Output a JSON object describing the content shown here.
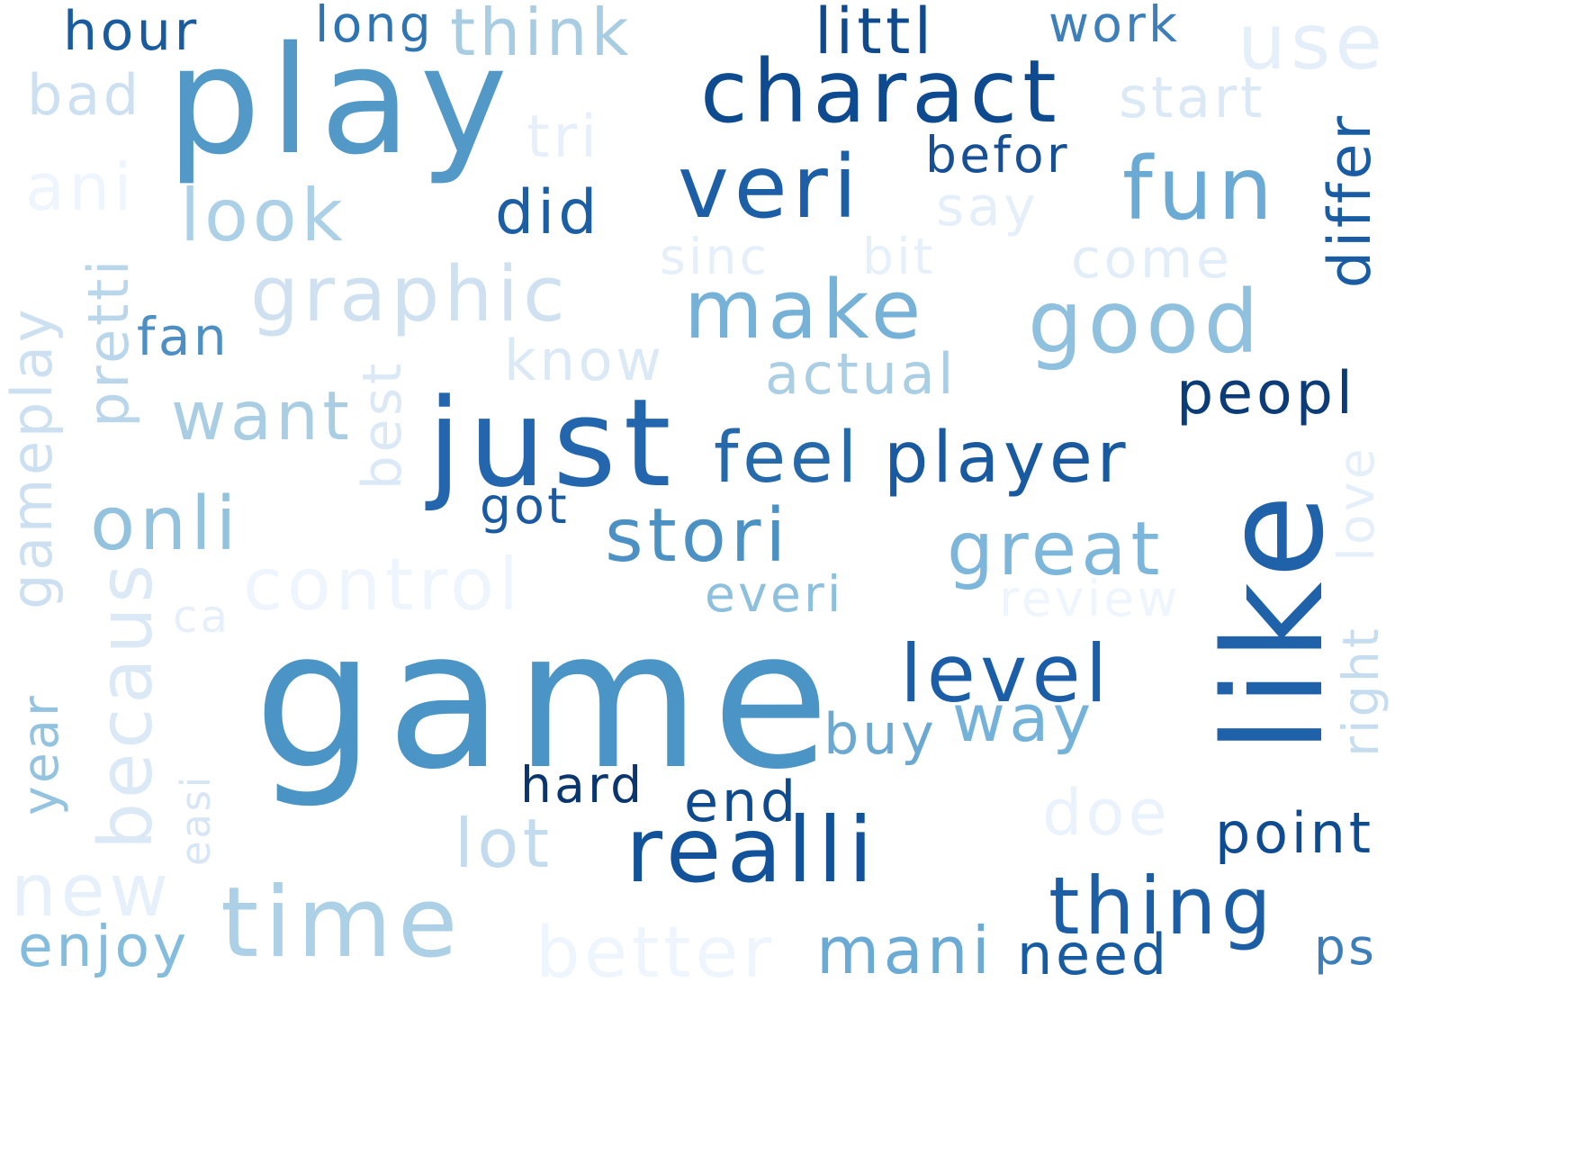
{
  "words": [
    {
      "text": "game",
      "color": "#4b94c6"
    },
    {
      "text": "play",
      "color": "#5299c8"
    },
    {
      "text": "like",
      "color": "#2062aa"
    },
    {
      "text": "just",
      "color": "#2466ad"
    },
    {
      "text": "time",
      "color": "#acd0e5"
    },
    {
      "text": "realli",
      "color": "#11529b"
    },
    {
      "text": "charact",
      "color": "#0d4a90"
    },
    {
      "text": "veri",
      "color": "#1d5fa6"
    },
    {
      "text": "fun",
      "color": "#6aaad5"
    },
    {
      "text": "good",
      "color": "#8fc1de"
    },
    {
      "text": "make",
      "color": "#76b1d8"
    },
    {
      "text": "graphic",
      "color": "#cfe1f1"
    },
    {
      "text": "stori",
      "color": "#4c91c3"
    },
    {
      "text": "great",
      "color": "#7cb7db"
    },
    {
      "text": "level",
      "color": "#1b5ea7"
    },
    {
      "text": "thing",
      "color": "#1c5ea6"
    },
    {
      "text": "player",
      "color": "#19599f"
    },
    {
      "text": "feel",
      "color": "#2669ab"
    },
    {
      "text": "look",
      "color": "#acd0e5"
    },
    {
      "text": "onli",
      "color": "#92c2de"
    },
    {
      "text": "want",
      "color": "#a9cde3"
    },
    {
      "text": "littl",
      "color": "#0f4a8f"
    },
    {
      "text": "differ",
      "color": "#1a5ca3"
    },
    {
      "text": "peopl",
      "color": "#0c3c78"
    },
    {
      "text": "way",
      "color": "#74b2da"
    },
    {
      "text": "mani",
      "color": "#6aaad4"
    },
    {
      "text": "point",
      "color": "#0e4b90"
    },
    {
      "text": "becaus",
      "color": "#dbe9f6"
    },
    {
      "text": "control",
      "color": "#eff5fc"
    },
    {
      "text": "gameplay",
      "color": "#cde0f1"
    },
    {
      "text": "pretti",
      "color": "#bad6ea"
    },
    {
      "text": "lot",
      "color": "#c3dbee"
    },
    {
      "text": "new",
      "color": "#e6f0fa"
    },
    {
      "text": "enjoy",
      "color": "#83bcdc"
    },
    {
      "text": "better",
      "color": "#eef5fc"
    },
    {
      "text": "need",
      "color": "#175ba2"
    },
    {
      "text": "end",
      "color": "#0f4a8f"
    },
    {
      "text": "hard",
      "color": "#0a3670"
    },
    {
      "text": "buy",
      "color": "#6ba9d3"
    },
    {
      "text": "everi",
      "color": "#8ec0dd"
    },
    {
      "text": "review",
      "color": "#eef5fc"
    },
    {
      "text": "doe",
      "color": "#eaf2fb"
    },
    {
      "text": "right",
      "color": "#c6dcef"
    },
    {
      "text": "love",
      "color": "#e4eff9"
    },
    {
      "text": "ps",
      "color": "#3b7ebb"
    },
    {
      "text": "year",
      "color": "#93c3df"
    },
    {
      "text": "easi",
      "color": "#d7e6f5"
    },
    {
      "text": "ca",
      "color": "#e7f0fa"
    },
    {
      "text": "best",
      "color": "#dbe9f6"
    },
    {
      "text": "got",
      "color": "#1a5aa2"
    },
    {
      "text": "actual",
      "color": "#aacee4"
    },
    {
      "text": "know",
      "color": "#dbe9f6"
    },
    {
      "text": "fan",
      "color": "#4e8fc3"
    },
    {
      "text": "sinc",
      "color": "#e5eff9"
    },
    {
      "text": "bit",
      "color": "#e6f0fa"
    },
    {
      "text": "come",
      "color": "#e1edf8"
    },
    {
      "text": "say",
      "color": "#e5eff9"
    },
    {
      "text": "did",
      "color": "#1b5ea4"
    },
    {
      "text": "befor",
      "color": "#174f95"
    },
    {
      "text": "tri",
      "color": "#e7f0fa"
    },
    {
      "text": "ani",
      "color": "#eff5fc"
    },
    {
      "text": "bad",
      "color": "#cde0f1"
    },
    {
      "text": "hour",
      "color": "#195b9f"
    },
    {
      "text": "long",
      "color": "#2f74b2"
    },
    {
      "text": "think",
      "color": "#a8cde3"
    },
    {
      "text": "work",
      "color": "#3c7fba"
    },
    {
      "text": "use",
      "color": "#e4eff9"
    },
    {
      "text": "start",
      "color": "#dbe9f6"
    }
  ]
}
